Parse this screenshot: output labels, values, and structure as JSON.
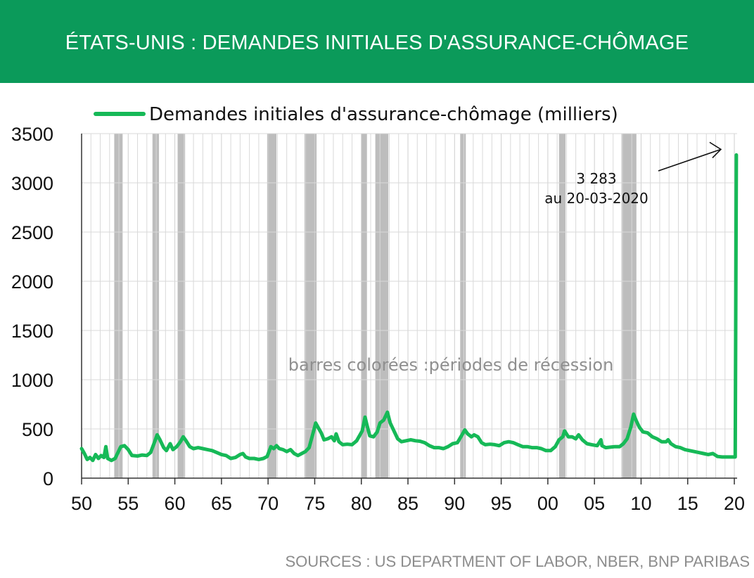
{
  "header": {
    "title": "ÉTATS-UNIS : DEMANDES INITIALES D'ASSURANCE-CHÔMAGE"
  },
  "footer": {
    "source": "SOURCES : US DEPARTMENT OF LABOR, NBER, BNP PARIBAS"
  },
  "colors": {
    "banner": "#0b9a5a",
    "line": "#16b957",
    "recession": "#bdbdbd",
    "grid": "#d9d9d9"
  },
  "chart_data": {
    "type": "line",
    "legend": {
      "label": "Demandes initiales d'assurance-chômage (milliers)",
      "position": "top"
    },
    "ylim": [
      0,
      3500
    ],
    "yticks": [
      0,
      500,
      1000,
      1500,
      2000,
      2500,
      3000,
      3500
    ],
    "xlim": [
      1950,
      2020.3
    ],
    "xticks": [
      {
        "year": 1950,
        "label": "50"
      },
      {
        "year": 1955,
        "label": "55"
      },
      {
        "year": 1960,
        "label": "60"
      },
      {
        "year": 1965,
        "label": "65"
      },
      {
        "year": 1970,
        "label": "70"
      },
      {
        "year": 1975,
        "label": "75"
      },
      {
        "year": 1980,
        "label": "80"
      },
      {
        "year": 1985,
        "label": "85"
      },
      {
        "year": 1990,
        "label": "90"
      },
      {
        "year": 1995,
        "label": "95"
      },
      {
        "year": 2000,
        "label": "00"
      },
      {
        "year": 2005,
        "label": "05"
      },
      {
        "year": 2010,
        "label": "10"
      },
      {
        "year": 2015,
        "label": "15"
      },
      {
        "year": 2020,
        "label": "20"
      }
    ],
    "grid": true,
    "recessions": [
      [
        1953.5,
        1954.4
      ],
      [
        1957.6,
        1958.3
      ],
      [
        1960.3,
        1961.1
      ],
      [
        1969.9,
        1970.9
      ],
      [
        1973.9,
        1975.2
      ],
      [
        1980.0,
        1980.6
      ],
      [
        1981.5,
        1982.9
      ],
      [
        1990.6,
        1991.2
      ],
      [
        2001.2,
        2001.9
      ],
      [
        2007.9,
        2009.5
      ]
    ],
    "annotation": {
      "value_text": "3 283",
      "date_text": "au 20-03-2020"
    },
    "recession_note": "barres colorées :périodes de récession",
    "series": [
      {
        "name": "Demandes initiales d'assurance-chômage (milliers)",
        "points": [
          [
            1950.0,
            300
          ],
          [
            1950.3,
            250
          ],
          [
            1950.6,
            190
          ],
          [
            1950.9,
            210
          ],
          [
            1951.2,
            180
          ],
          [
            1951.5,
            240
          ],
          [
            1951.8,
            200
          ],
          [
            1952.1,
            230
          ],
          [
            1952.4,
            210
          ],
          [
            1952.6,
            320
          ],
          [
            1952.8,
            200
          ],
          [
            1953.2,
            180
          ],
          [
            1953.6,
            200
          ],
          [
            1953.9,
            260
          ],
          [
            1954.2,
            320
          ],
          [
            1954.6,
            330
          ],
          [
            1955.0,
            290
          ],
          [
            1955.4,
            230
          ],
          [
            1956.0,
            225
          ],
          [
            1956.5,
            235
          ],
          [
            1957.0,
            230
          ],
          [
            1957.4,
            260
          ],
          [
            1957.8,
            360
          ],
          [
            1958.1,
            440
          ],
          [
            1958.4,
            390
          ],
          [
            1958.8,
            310
          ],
          [
            1959.1,
            280
          ],
          [
            1959.5,
            350
          ],
          [
            1959.8,
            290
          ],
          [
            1960.2,
            320
          ],
          [
            1960.6,
            370
          ],
          [
            1960.9,
            420
          ],
          [
            1961.2,
            380
          ],
          [
            1961.6,
            320
          ],
          [
            1962.0,
            300
          ],
          [
            1962.5,
            310
          ],
          [
            1963.0,
            300
          ],
          [
            1963.5,
            290
          ],
          [
            1964.0,
            280
          ],
          [
            1964.5,
            260
          ],
          [
            1965.0,
            240
          ],
          [
            1965.5,
            230
          ],
          [
            1966.0,
            200
          ],
          [
            1966.5,
            210
          ],
          [
            1967.0,
            240
          ],
          [
            1967.3,
            250
          ],
          [
            1967.6,
            215
          ],
          [
            1968.0,
            200
          ],
          [
            1968.5,
            200
          ],
          [
            1969.0,
            190
          ],
          [
            1969.5,
            200
          ],
          [
            1969.9,
            220
          ],
          [
            1970.3,
            320
          ],
          [
            1970.6,
            300
          ],
          [
            1970.9,
            330
          ],
          [
            1971.2,
            300
          ],
          [
            1971.6,
            290
          ],
          [
            1972.0,
            270
          ],
          [
            1972.4,
            290
          ],
          [
            1972.8,
            250
          ],
          [
            1973.2,
            230
          ],
          [
            1973.6,
            250
          ],
          [
            1974.0,
            270
          ],
          [
            1974.4,
            310
          ],
          [
            1974.8,
            450
          ],
          [
            1975.1,
            560
          ],
          [
            1975.4,
            510
          ],
          [
            1975.7,
            460
          ],
          [
            1976.0,
            390
          ],
          [
            1976.4,
            400
          ],
          [
            1976.8,
            420
          ],
          [
            1977.1,
            380
          ],
          [
            1977.3,
            450
          ],
          [
            1977.6,
            370
          ],
          [
            1978.0,
            340
          ],
          [
            1978.5,
            345
          ],
          [
            1979.0,
            340
          ],
          [
            1979.5,
            380
          ],
          [
            1979.8,
            430
          ],
          [
            1980.1,
            480
          ],
          [
            1980.4,
            620
          ],
          [
            1980.6,
            540
          ],
          [
            1980.9,
            430
          ],
          [
            1981.3,
            420
          ],
          [
            1981.7,
            470
          ],
          [
            1982.0,
            560
          ],
          [
            1982.4,
            590
          ],
          [
            1982.8,
            670
          ],
          [
            1983.1,
            560
          ],
          [
            1983.5,
            480
          ],
          [
            1983.9,
            400
          ],
          [
            1984.3,
            370
          ],
          [
            1984.8,
            380
          ],
          [
            1985.3,
            390
          ],
          [
            1985.8,
            380
          ],
          [
            1986.3,
            375
          ],
          [
            1986.8,
            360
          ],
          [
            1987.3,
            330
          ],
          [
            1987.8,
            310
          ],
          [
            1988.3,
            310
          ],
          [
            1988.8,
            300
          ],
          [
            1989.3,
            320
          ],
          [
            1989.8,
            350
          ],
          [
            1990.3,
            360
          ],
          [
            1990.8,
            440
          ],
          [
            1991.1,
            490
          ],
          [
            1991.4,
            450
          ],
          [
            1991.8,
            420
          ],
          [
            1992.1,
            440
          ],
          [
            1992.5,
            420
          ],
          [
            1992.9,
            360
          ],
          [
            1993.3,
            340
          ],
          [
            1993.8,
            345
          ],
          [
            1994.3,
            340
          ],
          [
            1994.8,
            330
          ],
          [
            1995.3,
            360
          ],
          [
            1995.8,
            370
          ],
          [
            1996.3,
            360
          ],
          [
            1996.8,
            340
          ],
          [
            1997.3,
            320
          ],
          [
            1997.8,
            320
          ],
          [
            1998.3,
            310
          ],
          [
            1998.8,
            310
          ],
          [
            1999.3,
            300
          ],
          [
            1999.8,
            280
          ],
          [
            2000.3,
            280
          ],
          [
            2000.8,
            320
          ],
          [
            2001.2,
            390
          ],
          [
            2001.6,
            420
          ],
          [
            2001.8,
            480
          ],
          [
            2002.2,
            420
          ],
          [
            2002.6,
            420
          ],
          [
            2003.0,
            400
          ],
          [
            2003.3,
            440
          ],
          [
            2003.7,
            390
          ],
          [
            2004.2,
            350
          ],
          [
            2004.7,
            340
          ],
          [
            2005.3,
            330
          ],
          [
            2005.7,
            390
          ],
          [
            2005.8,
            330
          ],
          [
            2006.2,
            310
          ],
          [
            2006.7,
            315
          ],
          [
            2007.2,
            320
          ],
          [
            2007.7,
            320
          ],
          [
            2008.1,
            350
          ],
          [
            2008.5,
            400
          ],
          [
            2008.9,
            520
          ],
          [
            2009.2,
            650
          ],
          [
            2009.5,
            580
          ],
          [
            2009.8,
            520
          ],
          [
            2010.2,
            470
          ],
          [
            2010.7,
            460
          ],
          [
            2011.2,
            420
          ],
          [
            2011.7,
            400
          ],
          [
            2012.2,
            370
          ],
          [
            2012.7,
            370
          ],
          [
            2012.9,
            390
          ],
          [
            2013.2,
            350
          ],
          [
            2013.7,
            320
          ],
          [
            2014.2,
            310
          ],
          [
            2014.7,
            290
          ],
          [
            2015.2,
            280
          ],
          [
            2015.7,
            270
          ],
          [
            2016.2,
            260
          ],
          [
            2016.7,
            250
          ],
          [
            2017.2,
            240
          ],
          [
            2017.7,
            250
          ],
          [
            2018.2,
            220
          ],
          [
            2018.7,
            215
          ],
          [
            2019.2,
            215
          ],
          [
            2019.7,
            215
          ],
          [
            2020.1,
            215
          ],
          [
            2020.22,
            3283
          ]
        ]
      }
    ]
  }
}
